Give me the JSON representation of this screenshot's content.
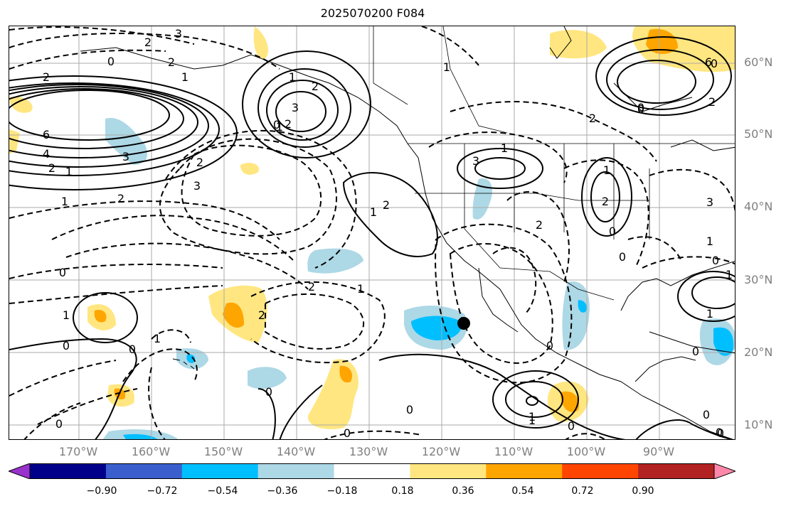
{
  "title": "2025070200 F084",
  "lat_labels": [
    "60°N",
    "50°N",
    "40°N",
    "30°N",
    "20°N",
    "10°N"
  ],
  "lon_labels": [
    "170°W",
    "160°W",
    "150°W",
    "140°W",
    "130°W",
    "120°W",
    "110°W",
    "100°W",
    "90°W"
  ],
  "colorbar": {
    "ticks": [
      "−0.90",
      "−0.72",
      "−0.54",
      "−0.36",
      "−0.18",
      "0.18",
      "0.36",
      "0.54",
      "0.72",
      "0.90"
    ],
    "colors": [
      "#9932cc",
      "#00008b",
      "#3a5fcd",
      "#00bfff",
      "#add8e6",
      "#ffffff",
      "#ffe680",
      "#ffa500",
      "#ff4500",
      "#b22222",
      "#ff88aa"
    ]
  },
  "contour_labels": [
    "3",
    "2",
    "0",
    "2",
    "2",
    "1",
    "6",
    "4",
    "2",
    "1",
    "3",
    "2",
    "1",
    "3",
    "2",
    "1",
    "0",
    "2",
    "3",
    "1",
    "2",
    "1",
    "2",
    "1",
    "1",
    "0",
    "2",
    "3",
    "0",
    "1",
    "2",
    "1",
    "3",
    "2",
    "2",
    "1",
    "1",
    "2",
    "0",
    "1",
    "0",
    "0",
    "1",
    "0",
    "0",
    "0",
    "0",
    "0",
    "0",
    "0",
    "0",
    "1",
    "0",
    "1",
    "0",
    "2",
    "0",
    "6",
    "0",
    "1",
    "0",
    "0"
  ],
  "marker": "storm-center"
}
